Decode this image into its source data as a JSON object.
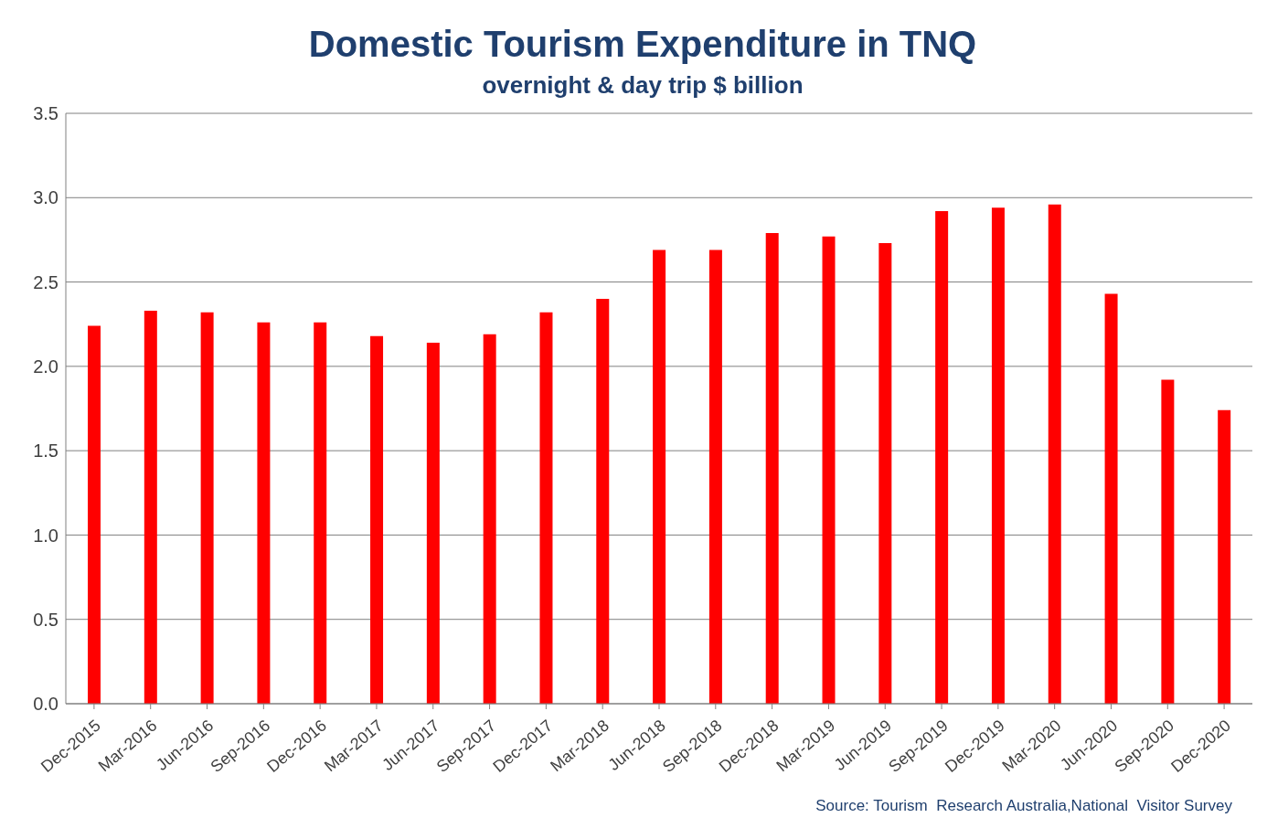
{
  "chart_data": {
    "type": "bar",
    "title": "Domestic Tourism Expenditure in TNQ",
    "subtitle": "overnight & day trip $ billion",
    "categories": [
      "Dec-2015",
      "Mar-2016",
      "Jun-2016",
      "Sep-2016",
      "Dec-2016",
      "Mar-2017",
      "Jun-2017",
      "Sep-2017",
      "Dec-2017",
      "Mar-2018",
      "Jun-2018",
      "Sep-2018",
      "Dec-2018",
      "Mar-2019",
      "Jun-2019",
      "Sep-2019",
      "Dec-2019",
      "Mar-2020",
      "Jun-2020",
      "Sep-2020",
      "Dec-2020"
    ],
    "values": [
      2.24,
      2.33,
      2.32,
      2.26,
      2.26,
      2.18,
      2.14,
      2.19,
      2.32,
      2.4,
      2.69,
      2.69,
      2.79,
      2.77,
      2.73,
      2.92,
      2.94,
      2.96,
      2.43,
      1.92,
      1.74
    ],
    "color": "#ff0000",
    "ylim": [
      0,
      3.5
    ],
    "yticks": [
      {
        "value": 0,
        "label": "0.0"
      },
      {
        "value": 0.5,
        "label": "0.5"
      },
      {
        "value": 1,
        "label": "1.0"
      },
      {
        "value": 1.5,
        "label": "1.5"
      },
      {
        "value": 2,
        "label": "2.0"
      },
      {
        "value": 2.5,
        "label": "2.5"
      },
      {
        "value": 3,
        "label": "3.0"
      },
      {
        "value": 3.5,
        "label": "3.5"
      }
    ],
    "grid": "y",
    "annotations": [
      "Source: Tourism  Research Australia,National  Visitor Survey"
    ]
  }
}
